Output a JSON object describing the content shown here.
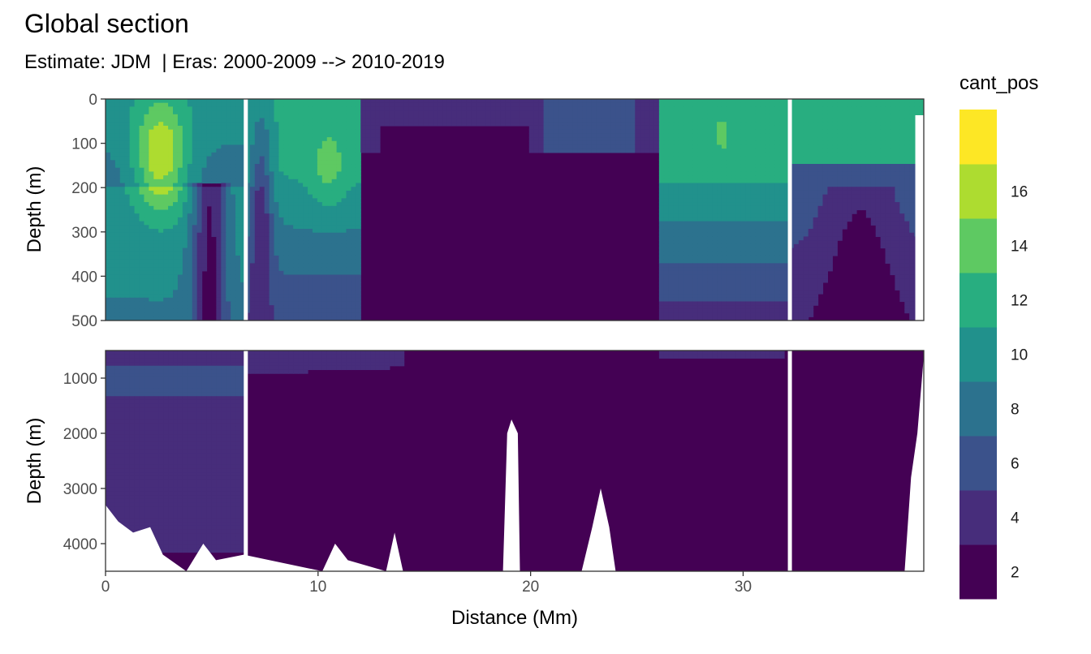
{
  "chart_data": {
    "type": "heatmap",
    "title": "Global section",
    "subtitle": "Estimate: JDM  | Eras: 2000-2009 --> 2010-2019",
    "xlabel": "Distance (Mm)",
    "ylabel": "Depth (m)",
    "xlim": [
      0,
      38.5
    ],
    "x_ticks": [
      "0",
      "10",
      "20",
      "30"
    ],
    "panels": [
      {
        "name": "upper",
        "ylim": [
          0,
          500
        ],
        "y_ticks": [
          "0",
          "100",
          "200",
          "300",
          "400",
          "500"
        ],
        "y_tick_values": [
          0,
          100,
          200,
          300,
          400,
          500
        ]
      },
      {
        "name": "lower",
        "ylim": [
          500,
          4500
        ],
        "y_ticks": [
          "1000",
          "2000",
          "3000",
          "4000"
        ],
        "y_tick_values": [
          1000,
          2000,
          3000,
          4000
        ]
      }
    ],
    "gaps_x": [
      6.6,
      32.2
    ],
    "surface_maxima": [
      {
        "x": 2.5,
        "depth": 150,
        "value": 17
      },
      {
        "x": 10.5,
        "depth": 150,
        "value": 13
      },
      {
        "x": 29.0,
        "depth": 80,
        "value": 12
      }
    ],
    "legend": {
      "title": "cant_pos",
      "bin_labels": [
        "2",
        "4",
        "6",
        "8",
        "10",
        "12",
        "14",
        "16"
      ],
      "colors": [
        "#440154",
        "#472d7b",
        "#3b528b",
        "#2c728e",
        "#21918c",
        "#28ae80",
        "#5ec962",
        "#addc30",
        "#fde725"
      ],
      "placement": "right"
    }
  }
}
